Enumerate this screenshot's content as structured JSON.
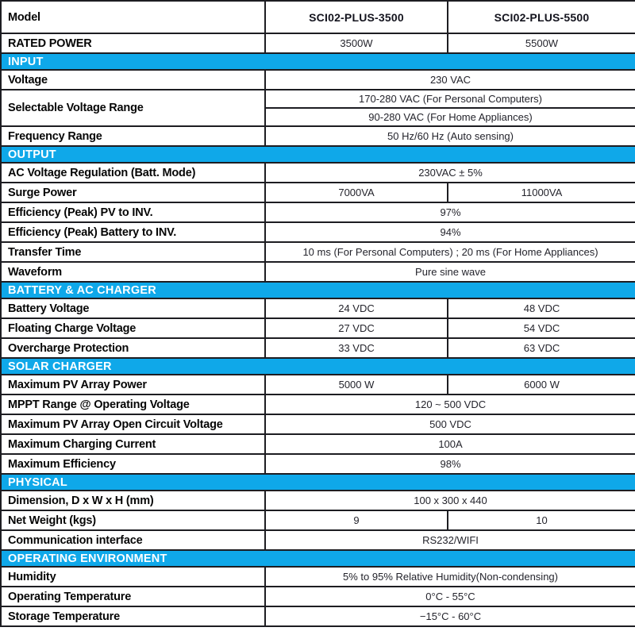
{
  "colors": {
    "section_bg": "#0fa8e9",
    "section_text": "#ffffff",
    "border": "#1d1d22",
    "label_text": "#060606",
    "value_text": "#24242c"
  },
  "table": {
    "rows": [
      {
        "type": "model-header",
        "label": "Model",
        "values": [
          "SCI02-PLUS-3500",
          "SCI02-PLUS-5500"
        ]
      },
      {
        "type": "data",
        "label": "RATED POWER",
        "values": [
          "3500W",
          "5500W"
        ]
      },
      {
        "type": "section",
        "label": "INPUT"
      },
      {
        "type": "data",
        "label": "Voltage",
        "values": [
          "230 VAC"
        ]
      },
      {
        "type": "data",
        "label": "Selectable Voltage Range",
        "values": [
          "170-280 VAC (For Personal Computers)"
        ]
      },
      {
        "type": "data-continuation",
        "values": [
          "90-280 VAC (For Home Appliances)"
        ]
      },
      {
        "type": "data",
        "label": "Frequency Range",
        "values": [
          "50 Hz/60 Hz (Auto sensing)"
        ]
      },
      {
        "type": "section",
        "label": "OUTPUT"
      },
      {
        "type": "data",
        "label": "AC Voltage Regulation (Batt. Mode)",
        "values": [
          "230VAC ± 5%"
        ]
      },
      {
        "type": "data",
        "label": "Surge Power",
        "values": [
          "7000VA",
          "11000VA"
        ]
      },
      {
        "type": "data",
        "label": "Efficiency (Peak) PV to INV.",
        "values": [
          "97%"
        ]
      },
      {
        "type": "data",
        "label": "Efficiency (Peak) Battery to INV.",
        "values": [
          "94%"
        ]
      },
      {
        "type": "data",
        "label": "Transfer Time",
        "values": [
          "10 ms (For Personal Computers) ; 20 ms (For Home Appliances)"
        ]
      },
      {
        "type": "data",
        "label": "Waveform",
        "values": [
          "Pure sine wave"
        ]
      },
      {
        "type": "section",
        "label": "BATTERY & AC CHARGER"
      },
      {
        "type": "data",
        "label": "Battery Voltage",
        "values": [
          "24 VDC",
          "48 VDC"
        ]
      },
      {
        "type": "data",
        "label": "Floating Charge Voltage",
        "values": [
          "27 VDC",
          "54 VDC"
        ]
      },
      {
        "type": "data",
        "label": "Overcharge Protection",
        "values": [
          "33 VDC",
          "63 VDC"
        ]
      },
      {
        "type": "section",
        "label": "SOLAR CHARGER"
      },
      {
        "type": "data",
        "label": "Maximum PV Array Power",
        "values": [
          "5000 W",
          "6000 W"
        ]
      },
      {
        "type": "data",
        "label": "MPPT Range @ Operating Voltage",
        "values": [
          "120 ~ 500 VDC"
        ]
      },
      {
        "type": "data",
        "label": "Maximum PV Array Open Circuit Voltage",
        "values": [
          "500 VDC"
        ]
      },
      {
        "type": "data",
        "label": "Maximum Charging Current",
        "values": [
          "100A"
        ]
      },
      {
        "type": "data",
        "label": "Maximum Efficiency",
        "values": [
          "98%"
        ]
      },
      {
        "type": "section",
        "label": "PHYSICAL"
      },
      {
        "type": "data",
        "label": "Dimension, D x W x H (mm)",
        "values": [
          "100 x 300 x 440"
        ]
      },
      {
        "type": "data",
        "label": "Net Weight (kgs)",
        "values": [
          "9",
          "10"
        ]
      },
      {
        "type": "data",
        "label": "Communication interface",
        "values": [
          "RS232/WIFI"
        ]
      },
      {
        "type": "section",
        "label": "OPERATING ENVIRONMENT"
      },
      {
        "type": "data",
        "label": "Humidity",
        "values": [
          "5% to 95% Relative Humidity(Non-condensing)"
        ]
      },
      {
        "type": "data",
        "label": "Operating Temperature",
        "values": [
          "0°C - 55°C"
        ]
      },
      {
        "type": "data",
        "label": "Storage Temperature",
        "values": [
          "−15°C - 60°C"
        ]
      }
    ]
  }
}
